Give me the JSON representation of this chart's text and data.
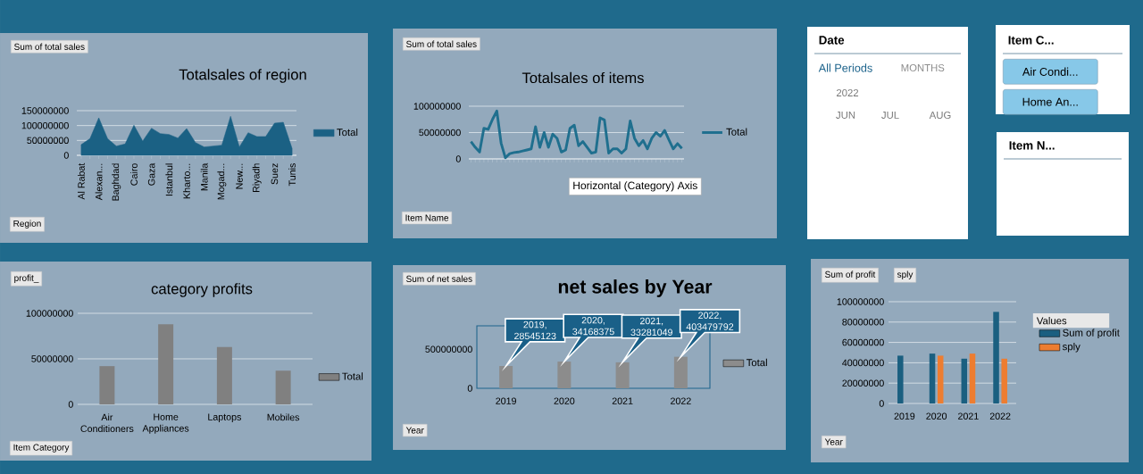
{
  "chart_data": [
    {
      "type": "area",
      "title": "Totalsales of region",
      "annotations": [
        "Sum of total sales",
        "Region"
      ],
      "categories": [
        "Al Rabat",
        null,
        "Alexan...",
        null,
        "Baghdad",
        null,
        "Cairo",
        null,
        "Gaza",
        null,
        "Istanbul",
        null,
        "Kharto...",
        null,
        "Manila",
        null,
        "Mogad...",
        null,
        "New...",
        null,
        "Riyadh",
        null,
        "Suez",
        null,
        "Tunis"
      ],
      "series": [
        {
          "name": "Total",
          "color": "#1b6184",
          "values": [
            36000000,
            56000000,
            126000000,
            56000000,
            31000000,
            38000000,
            101000000,
            48000000,
            91000000,
            73000000,
            70000000,
            58000000,
            90000000,
            43000000,
            28000000,
            31000000,
            34000000,
            131000000,
            28000000,
            76000000,
            63000000,
            63000000,
            108000000,
            111000000,
            23000000
          ]
        }
      ],
      "ylim": [
        0,
        150000000
      ],
      "yticks": [
        0,
        50000000,
        100000000,
        150000000
      ],
      "grid": "y",
      "legend": "right"
    },
    {
      "type": "line",
      "title": "Totalsales of items",
      "annotations": [
        "Sum of total sales",
        "Item Name",
        "Horizontal (Category) Axis"
      ],
      "categories": [
        null,
        null,
        null,
        null,
        null,
        null,
        null,
        null,
        null,
        null,
        null,
        null,
        null,
        null,
        null,
        null,
        null,
        null,
        null,
        null,
        null,
        null,
        null,
        null,
        null,
        null,
        null,
        null,
        null,
        null,
        null,
        null,
        null,
        null,
        null,
        null,
        null,
        null,
        null,
        null,
        null,
        null,
        null,
        null,
        null,
        null,
        null,
        null,
        null,
        null
      ],
      "series": [
        {
          "name": "Total",
          "color": "#1f6f8e",
          "values": [
            33000000,
            22000000,
            13000000,
            58000000,
            56000000,
            75000000,
            91000000,
            30000000,
            2000000,
            10000000,
            12000000,
            13000000,
            15000000,
            17000000,
            19000000,
            61000000,
            22000000,
            50000000,
            22000000,
            47000000,
            39000000,
            13000000,
            17000000,
            58000000,
            64000000,
            25000000,
            33000000,
            22000000,
            11000000,
            13000000,
            78000000,
            74000000,
            11000000,
            19000000,
            19000000,
            11000000,
            19000000,
            72000000,
            39000000,
            25000000,
            35000000,
            19000000,
            39000000,
            50000000,
            43000000,
            54000000,
            36000000,
            19000000,
            29000000,
            20000000
          ]
        }
      ],
      "ylim": [
        0,
        100000000
      ],
      "yticks": [
        0,
        50000000,
        100000000
      ],
      "grid": "y",
      "legend": "right"
    },
    {
      "type": "other",
      "title": "Date",
      "annotations": [
        "All Periods",
        "MONTHS",
        "2022",
        "JUN",
        "JUL",
        "AUG"
      ]
    },
    {
      "type": "other",
      "title": "Item C...",
      "annotations": [
        "Air Condi...",
        "Home An..."
      ]
    },
    {
      "type": "other",
      "title": "Item N..."
    },
    {
      "type": "bar",
      "title": "category profits",
      "annotations": [
        "profit_",
        "Item Category"
      ],
      "categories": [
        "Air Conditioners",
        "Home Appliances",
        "Laptops",
        "Mobiles"
      ],
      "series": [
        {
          "name": "Total",
          "color": "#808080",
          "values": [
            42000000,
            88000000,
            63000000,
            37000000
          ]
        }
      ],
      "ylim": [
        0,
        100000000
      ],
      "yticks": [
        0,
        50000000,
        100000000
      ],
      "grid": "y",
      "legend": "right"
    },
    {
      "type": "bar",
      "title": "net sales by Year",
      "annotations": [
        "Sum of net sales",
        "Year"
      ],
      "categories": [
        "2019",
        "2020",
        "2021",
        "2022"
      ],
      "series": [
        {
          "name": "Total",
          "color": "#8c8c8c",
          "values": [
            285451230,
            341683750,
            332810490,
            403479792
          ]
        }
      ],
      "value_labels": [
        "2019, 28545123",
        "2020, 34168375",
        "2021, 33281049",
        "2022, 403479792"
      ],
      "ylim": [
        0,
        800000000
      ],
      "yticks": [
        0,
        500000000
      ],
      "legend": "right"
    },
    {
      "type": "bar",
      "annotations": [
        "Sum of profit",
        "sply",
        "Year"
      ],
      "legend_title": "Values",
      "categories": [
        "2019",
        "2020",
        "2021",
        "2022"
      ],
      "series": [
        {
          "name": "Sum of profit",
          "color": "#1a5f80",
          "values": [
            47000000,
            49000000,
            44000000,
            90000000
          ]
        },
        {
          "name": "sply",
          "color": "#ed7d31",
          "values": [
            null,
            47000000,
            49000000,
            44000000
          ]
        }
      ],
      "ylim": [
        0,
        100000000
      ],
      "yticks": [
        0,
        20000000,
        40000000,
        60000000,
        80000000,
        100000000
      ],
      "grid": "y",
      "legend": "right"
    }
  ]
}
